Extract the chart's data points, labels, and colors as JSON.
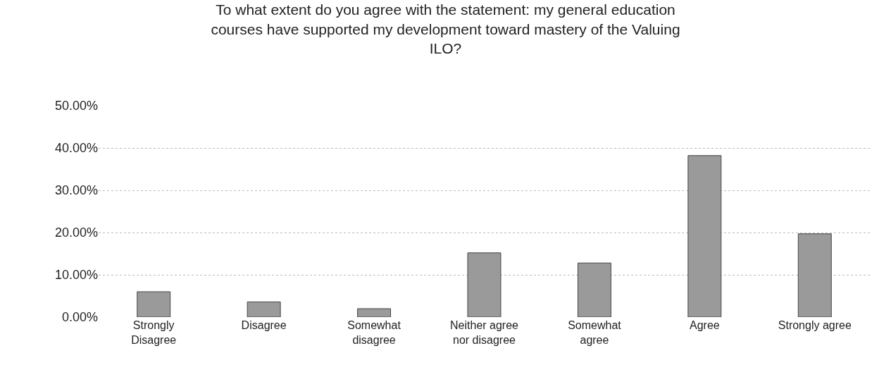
{
  "chart_data": {
    "type": "bar",
    "title": "To what extent do you agree with the statement: my general education\ncourses have supported my development toward mastery of the Valuing\nILO?",
    "categories": [
      "Strongly\nDisagree",
      "Disagree",
      "Somewhat\ndisagree",
      "Neither agree\nnor disagree",
      "Somewhat\nagree",
      "Agree",
      "Strongly agree"
    ],
    "values": [
      6.0,
      3.6,
      2.0,
      15.2,
      12.8,
      38.2,
      19.7
    ],
    "color": "#9a9a9a",
    "ylim": [
      0,
      50
    ],
    "yticks": [
      {
        "value": 0,
        "label": "0.00%"
      },
      {
        "value": 10,
        "label": "10.00%"
      },
      {
        "value": 20,
        "label": "20.00%"
      },
      {
        "value": 30,
        "label": "30.00%"
      },
      {
        "value": 40,
        "label": "40.00%"
      },
      {
        "value": 50,
        "label": "50.00%"
      }
    ],
    "grid": "y"
  }
}
